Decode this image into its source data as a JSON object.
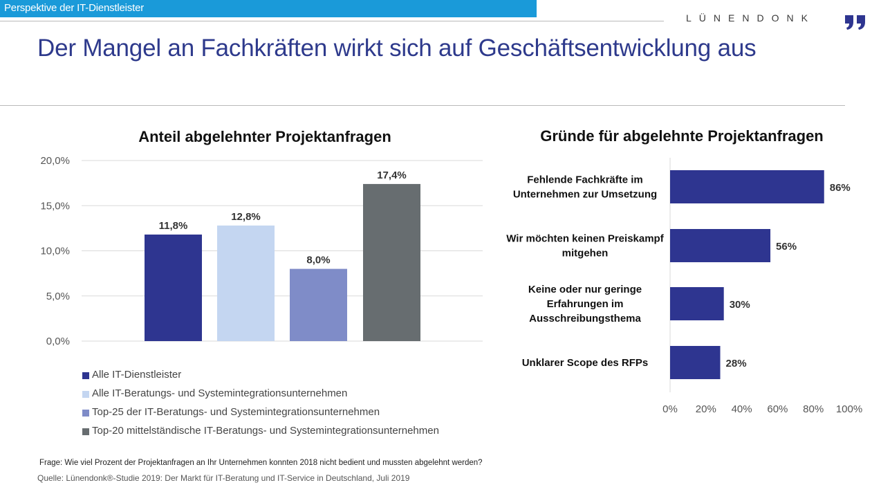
{
  "header": {
    "section_label": "Perspektive der IT-Dienstleister",
    "logo_text": "LÜNENDONK",
    "logo_mark_icon": "quote-mark-icon",
    "title": "Der Mangel an Fachkräften wirkt sich auf Geschäftsentwicklung aus"
  },
  "colors": {
    "topbar": "#1a9ad9",
    "title": "#2e3a8c",
    "navy": "#2e3590",
    "light_blue": "#c4d6f1",
    "periwinkle": "#7f8cc8",
    "gray": "#676d70"
  },
  "chart_data": [
    {
      "type": "bar",
      "title": "Anteil abgelehnter Projektanfragen",
      "categories": [
        "Alle IT-Dienstleister",
        "Alle IT-Beratungs- und Systemintegrationsunternehmen",
        "Top-25 der IT-Beratungs- und Systemintegrationsunternehmen",
        "Top-20 mittelständische IT-Beratungs- und Systemintegrationsunternehmen"
      ],
      "values": [
        11.8,
        12.8,
        8.0,
        17.4
      ],
      "value_labels": [
        "11,8%",
        "12,8%",
        "8,0%",
        "17,4%"
      ],
      "colors": [
        "#2e3590",
        "#c4d6f1",
        "#7f8cc8",
        "#676d70"
      ],
      "ylim": [
        0,
        20
      ],
      "yticks": [
        0,
        5,
        10,
        15,
        20
      ],
      "ytick_labels": [
        "0,0%",
        "5,0%",
        "10,0%",
        "15,0%",
        "20,0%"
      ],
      "grid": true,
      "legend_position": "bottom"
    },
    {
      "type": "bar",
      "orientation": "horizontal",
      "title": "Gründe für abgelehnte Projektanfragen",
      "categories": [
        [
          "Fehlende Fachkräfte im",
          "Unternehmen zur Umsetzung"
        ],
        [
          "Wir möchten keinen Preiskampf",
          "mitgehen"
        ],
        [
          "Keine oder nur geringe",
          "Erfahrungen im",
          "Ausschreibungsthema"
        ],
        [
          "Unklarer Scope des RFPs"
        ]
      ],
      "values": [
        86,
        56,
        30,
        28
      ],
      "value_labels": [
        "86%",
        "56%",
        "30%",
        "28%"
      ],
      "color": "#2e3590",
      "xlim": [
        0,
        100
      ],
      "xticks": [
        0,
        20,
        40,
        60,
        80,
        100
      ],
      "xtick_labels": [
        "0%",
        "20%",
        "40%",
        "60%",
        "80%",
        "100%"
      ],
      "grid": false
    }
  ],
  "footer": {
    "question": "Frage: Wie viel Prozent der Projektanfragen an Ihr Unternehmen konnten 2018 nicht bedient und mussten abgelehnt werden?",
    "source": "Quelle: Lünendonk®-Studie 2019: Der Markt für IT-Beratung und IT-Service in Deutschland, Juli 2019"
  }
}
